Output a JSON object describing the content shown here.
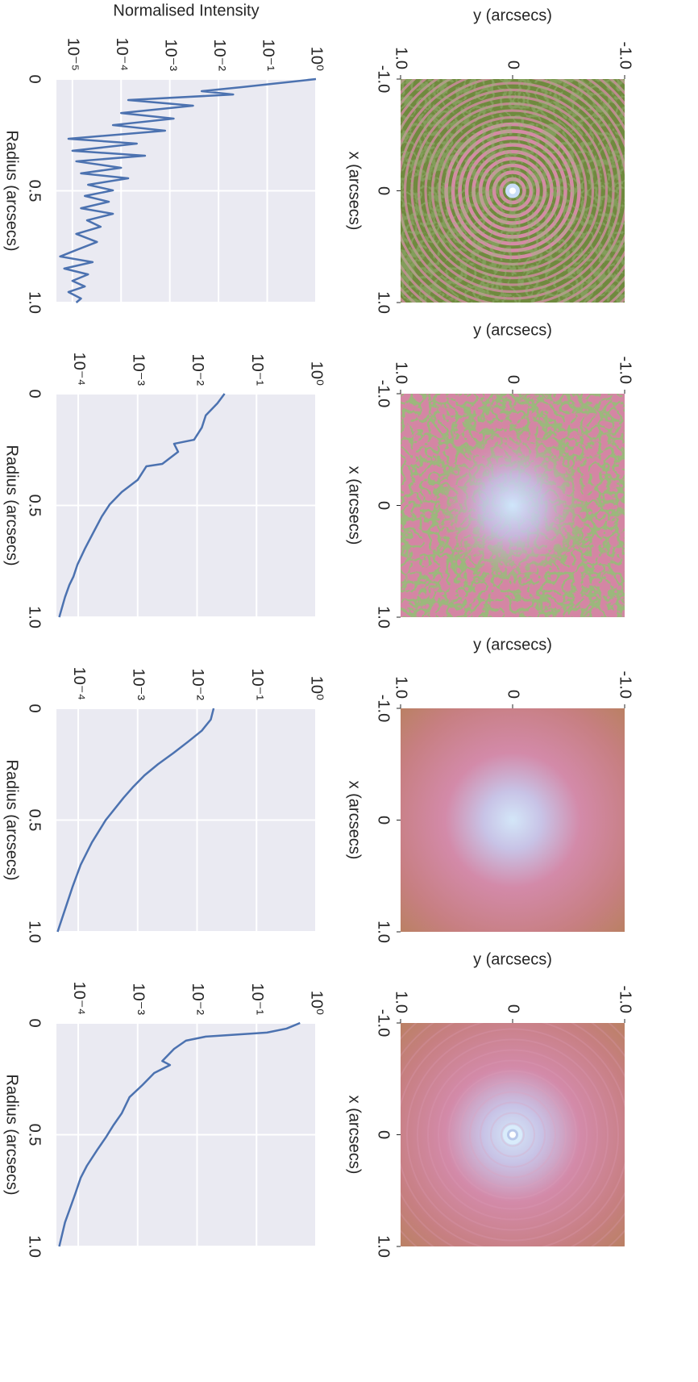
{
  "chart_data": [
    {
      "type": "image",
      "xlabel": "x (arcsecs)",
      "ylabel": "y (arcsecs)",
      "xlim": [
        -1,
        1
      ],
      "ylim": [
        1,
        -1
      ],
      "xticks": [
        {
          "value": -1,
          "label": "-1.0"
        },
        0,
        {
          "value": 1,
          "label": "1.0"
        }
      ],
      "yticks": [
        {
          "value": -1,
          "label": "-1.0"
        },
        0,
        {
          "value": 1,
          "label": "1.0"
        }
      ]
    },
    {
      "type": "line",
      "ylabel": "Normalised Intensity",
      "xlabel": "Radius (arcsecs)",
      "log_y": true,
      "grid": true,
      "xlim": [
        0,
        1
      ],
      "ylim": [
        4.7e-06,
        1
      ],
      "xticks": [
        0,
        0.5,
        {
          "value": 1,
          "label": "1.0"
        }
      ],
      "yticks": [
        {
          "value": 1,
          "label": "10⁰"
        },
        {
          "value": 0.1,
          "label": "10⁻¹"
        },
        {
          "value": 0.01,
          "label": "10⁻²"
        },
        {
          "value": 0.001,
          "label": "10⁻³"
        },
        {
          "value": 0.0001,
          "label": "10⁻⁴"
        },
        {
          "value": 1e-05,
          "label": "10⁻⁵"
        }
      ],
      "x": [
        0,
        0.036,
        0.054,
        0.069,
        0.094,
        0.119,
        0.152,
        0.177,
        0.206,
        0.231,
        0.267,
        0.289,
        0.321,
        0.343,
        0.368,
        0.397,
        0.422,
        0.444,
        0.473,
        0.498,
        0.523,
        0.549,
        0.578,
        0.603,
        0.632,
        0.661,
        0.693,
        0.729,
        0.765,
        0.794,
        0.819,
        0.848,
        0.874,
        0.903,
        0.928,
        0.953,
        0.982,
        1.0
      ],
      "color": "#4c72b0",
      "values": [
        1,
        0.03,
        0.0045,
        0.02,
        0.00014,
        0.003,
        0.0001,
        0.0012,
        6.8e-05,
        0.0008,
        8.3e-06,
        0.00021,
        1e-05,
        0.00031,
        1.2e-05,
        0.0001,
        1.5e-05,
        0.00014,
        2.1e-05,
        6.8e-05,
        1.8e-05,
        5.6e-05,
        1.5e-05,
        6.8e-05,
        2e-05,
        3.8e-05,
        1.2e-05,
        3.2e-05,
        1.2e-05,
        5.6e-06,
        2.6e-05,
        6.8e-06,
        2.1e-05,
        1e-05,
        1.8e-05,
        8.3e-06,
        1.5e-05,
        1.2e-05
      ]
    },
    {
      "type": "image",
      "xlabel": "x (arcsecs)",
      "ylabel": "y (arcsecs)",
      "xlim": [
        -1,
        1
      ],
      "ylim": [
        1,
        -1
      ],
      "xticks": [
        {
          "value": -1,
          "label": "-1.0"
        },
        0,
        {
          "value": 1,
          "label": "1.0"
        }
      ],
      "yticks": [
        {
          "value": -1,
          "label": "-1.0"
        },
        0,
        {
          "value": 1,
          "label": "1.0"
        }
      ]
    },
    {
      "type": "line",
      "xlabel": "Radius (arcsecs)",
      "log_y": true,
      "grid": true,
      "xlim": [
        0,
        1
      ],
      "ylim": [
        4.3e-05,
        1
      ],
      "xticks": [
        0,
        0.5,
        {
          "value": 1,
          "label": "1.0"
        }
      ],
      "yticks": [
        {
          "value": 1,
          "label": "10⁰"
        },
        {
          "value": 0.1,
          "label": "10⁻¹"
        },
        {
          "value": 0.01,
          "label": "10⁻²"
        },
        {
          "value": 0.001,
          "label": "10⁻³"
        },
        {
          "value": 0.0001,
          "label": "10⁻⁴"
        }
      ],
      "x": [
        0,
        0.043,
        0.097,
        0.152,
        0.206,
        0.224,
        0.26,
        0.314,
        0.325,
        0.386,
        0.44,
        0.495,
        0.549,
        0.621,
        0.693,
        0.765,
        0.819,
        0.856,
        0.91,
        1.0
      ],
      "color": "#4c72b0",
      "values": [
        0.029,
        0.022,
        0.014,
        0.012,
        0.0089,
        0.0041,
        0.0048,
        0.0026,
        0.0014,
        0.001,
        0.00054,
        0.00034,
        0.00025,
        0.00018,
        0.00013,
        9.7e-05,
        8.3e-05,
        7.1e-05,
        6e-05,
        4.8e-05
      ]
    },
    {
      "type": "image",
      "xlabel": "x (arcsecs)",
      "ylabel": "y (arcsecs)",
      "xlim": [
        -1,
        1
      ],
      "ylim": [
        1,
        -1
      ],
      "xticks": [
        {
          "value": -1,
          "label": "-1.0"
        },
        0,
        {
          "value": 1,
          "label": "1.0"
        }
      ],
      "yticks": [
        {
          "value": -1,
          "label": "-1.0"
        },
        0,
        {
          "value": 1,
          "label": "1.0"
        }
      ]
    },
    {
      "type": "line",
      "xlabel": "Radius (arcsecs)",
      "log_y": true,
      "grid": true,
      "xlim": [
        0,
        1
      ],
      "ylim": [
        4.3e-05,
        1
      ],
      "xticks": [
        0,
        0.5,
        {
          "value": 1,
          "label": "1.0"
        }
      ],
      "yticks": [
        {
          "value": 1,
          "label": "10⁰"
        },
        {
          "value": 0.1,
          "label": "10⁻¹"
        },
        {
          "value": 0.01,
          "label": "10⁻²"
        },
        {
          "value": 0.001,
          "label": "10⁻³"
        },
        {
          "value": 0.0001,
          "label": "10⁻⁴"
        }
      ],
      "x": [
        0,
        0.05,
        0.1,
        0.15,
        0.2,
        0.25,
        0.3,
        0.35,
        0.4,
        0.5,
        0.6,
        0.7,
        0.8,
        0.9,
        1.0
      ],
      "color": "#4c72b0",
      "values": [
        0.019,
        0.017,
        0.012,
        0.007,
        0.004,
        0.0022,
        0.0013,
        0.00085,
        0.00058,
        0.00029,
        0.00017,
        0.00011,
        8e-05,
        6e-05,
        4.5e-05
      ]
    },
    {
      "type": "image",
      "xlabel": "x (arcsecs)",
      "ylabel": "y (arcsecs)",
      "xlim": [
        -1,
        1
      ],
      "ylim": [
        1,
        -1
      ],
      "xticks": [
        {
          "value": -1,
          "label": "-1.0"
        },
        0,
        {
          "value": 1,
          "label": "1.0"
        }
      ],
      "yticks": [
        {
          "value": -1,
          "label": "-1.0"
        },
        0,
        {
          "value": 1,
          "label": "1.0"
        }
      ]
    },
    {
      "type": "line",
      "xlabel": "Radius (arcsecs)",
      "log_y": true,
      "grid": true,
      "xlim": [
        0,
        1
      ],
      "ylim": [
        4.3e-05,
        1
      ],
      "xticks": [
        0,
        0.5,
        {
          "value": 1,
          "label": "1.0"
        }
      ],
      "yticks": [
        {
          "value": 1,
          "label": "10⁰"
        },
        {
          "value": 0.1,
          "label": "10⁻¹"
        },
        {
          "value": 0.01,
          "label": "10⁻²"
        },
        {
          "value": 0.001,
          "label": "10⁻³"
        },
        {
          "value": 0.0001,
          "label": "10⁻⁴"
        }
      ],
      "x": [
        0,
        0.025,
        0.043,
        0.061,
        0.079,
        0.116,
        0.17,
        0.188,
        0.224,
        0.278,
        0.332,
        0.404,
        0.458,
        0.513,
        0.567,
        0.639,
        0.693,
        0.765,
        0.838,
        0.892,
        1.0
      ],
      "color": "#4c72b0",
      "values": [
        0.54,
        0.32,
        0.15,
        0.014,
        0.0065,
        0.0041,
        0.0026,
        0.0035,
        0.0019,
        0.0012,
        0.00073,
        0.00054,
        0.00039,
        0.00029,
        0.00021,
        0.00014,
        0.00011,
        8.9e-05,
        7.1e-05,
        6e-05,
        4.8e-05
      ]
    }
  ]
}
